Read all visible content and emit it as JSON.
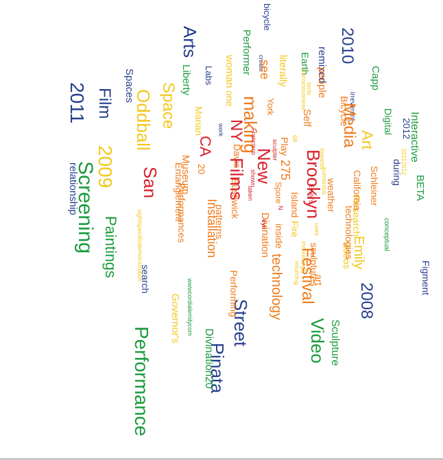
{
  "colors": {
    "blue": "#253e8c",
    "green": "#1a9a3c",
    "yellow": "#f2c81e",
    "orange": "#f07a1a",
    "red": "#d8202a"
  },
  "words": [
    {
      "t": "bicycle",
      "c": "blue"
    },
    {
      "t": "2010",
      "c": "blue"
    },
    {
      "t": "Arts",
      "c": "blue"
    },
    {
      "t": "2011",
      "c": "blue"
    },
    {
      "t": "Film",
      "c": "blue"
    },
    {
      "t": "Spaces",
      "c": "blue"
    },
    {
      "t": "relationship",
      "c": "blue"
    },
    {
      "t": "Labs",
      "c": "blue"
    },
    {
      "t": "remixed",
      "c": "blue"
    },
    {
      "t": "irreverent",
      "c": "blue"
    },
    {
      "t": "2012",
      "c": "blue"
    },
    {
      "t": "during",
      "c": "blue"
    },
    {
      "t": "Figment",
      "c": "blue"
    },
    {
      "t": "2008",
      "c": "blue"
    },
    {
      "t": "Street",
      "c": "blue"
    },
    {
      "t": "Pinata",
      "c": "blue"
    },
    {
      "t": "search",
      "c": "blue"
    },
    {
      "t": "work",
      "c": "blue"
    },
    {
      "t": "create",
      "c": "blue"
    },
    {
      "t": "Performer",
      "c": "green"
    },
    {
      "t": "Earth",
      "c": "green"
    },
    {
      "t": "Capp",
      "c": "green"
    },
    {
      "t": "Liberty",
      "c": "green"
    },
    {
      "t": "Digital",
      "c": "green"
    },
    {
      "t": "Interactive",
      "c": "green"
    },
    {
      "t": "BETA",
      "c": "green"
    },
    {
      "t": "Screening",
      "c": "green"
    },
    {
      "t": "Paintings",
      "c": "green"
    },
    {
      "t": "conceptual",
      "c": "green"
    },
    {
      "t": "Video",
      "c": "green"
    },
    {
      "t": "Sculpture",
      "c": "green"
    },
    {
      "t": "Divination20",
      "c": "green"
    },
    {
      "t": "Performance",
      "c": "green"
    },
    {
      "t": "wwwcordialemilycom",
      "c": "green"
    },
    {
      "t": "Space",
      "c": "yellow"
    },
    {
      "t": "Oddball",
      "c": "yellow"
    },
    {
      "t": "2009",
      "c": "yellow"
    },
    {
      "t": "woman",
      "c": "yellow"
    },
    {
      "t": "one",
      "c": "yellow"
    },
    {
      "t": "Marian",
      "c": "yellow"
    },
    {
      "t": "Art",
      "c": "yellow"
    },
    {
      "t": "Emily",
      "c": "yellow"
    },
    {
      "t": "tools",
      "c": "yellow"
    },
    {
      "t": "20112012",
      "c": "yellow"
    },
    {
      "t": "sightspecificdemonstration",
      "c": "yellow"
    },
    {
      "t": "Governor's",
      "c": "yellow"
    },
    {
      "t": "Research",
      "c": "yellow"
    },
    {
      "t": "literally",
      "c": "yellow"
    },
    {
      "t": "humorous",
      "c": "yellow"
    },
    {
      "t": "increasingly",
      "c": "yellow"
    },
    {
      "t": "returning",
      "c": "yellow"
    },
    {
      "t": "uses",
      "c": "yellow"
    },
    {
      "t": "Consciousness",
      "c": "yellow"
    },
    {
      "t": "Fire",
      "c": "yellow"
    },
    {
      "t": "videos",
      "c": "yellow"
    },
    {
      "t": "68",
      "c": "yellow"
    },
    {
      "t": "towards",
      "c": "yellow"
    },
    {
      "t": "see",
      "c": "orange"
    },
    {
      "t": "people",
      "c": "orange"
    },
    {
      "t": "Bicycle",
      "c": "orange"
    },
    {
      "t": "York",
      "c": "orange"
    },
    {
      "t": "Self",
      "c": "orange"
    },
    {
      "t": "Museum",
      "c": "orange"
    },
    {
      "t": "Davis",
      "c": "orange"
    },
    {
      "t": "Play",
      "c": "orange"
    },
    {
      "t": "275",
      "c": "orange"
    },
    {
      "t": "Schleiner",
      "c": "orange"
    },
    {
      "t": "California",
      "c": "orange"
    },
    {
      "t": "weather",
      "c": "orange"
    },
    {
      "t": "Performances",
      "c": "orange"
    },
    {
      "t": "Bushwick",
      "c": "orange"
    },
    {
      "t": "patterns",
      "c": "orange"
    },
    {
      "t": "Performing",
      "c": "orange"
    },
    {
      "t": "inside",
      "c": "orange"
    },
    {
      "t": "Island",
      "c": "orange"
    },
    {
      "t": "technologies",
      "c": "orange"
    },
    {
      "t": "sculptures",
      "c": "orange"
    },
    {
      "t": "art",
      "c": "orange"
    },
    {
      "t": "Festival",
      "c": "orange"
    },
    {
      "t": "technology",
      "c": "orange"
    },
    {
      "t": "Divination",
      "c": "orange"
    },
    {
      "t": "Installation",
      "c": "orange"
    },
    {
      "t": "Entanglement",
      "c": "orange"
    },
    {
      "t": "Spore",
      "c": "orange"
    },
    {
      "t": "20",
      "c": "orange"
    },
    {
      "t": "Media",
      "c": "orange"
    },
    {
      "t": "making",
      "c": "orange"
    },
    {
      "t": "NY",
      "c": "red"
    },
    {
      "t": "CA",
      "c": "red"
    },
    {
      "t": "New",
      "c": "red"
    },
    {
      "t": "Films",
      "c": "red"
    },
    {
      "t": "Brooklyn",
      "c": "red"
    },
    {
      "t": "San",
      "c": "red"
    },
    {
      "t": "Francisco",
      "c": "red"
    },
    {
      "t": "sculpter",
      "c": "red"
    },
    {
      "t": "taken",
      "c": "red"
    },
    {
      "t": "shown",
      "c": "red"
    },
    {
      "t": "N",
      "c": "red"
    },
    {
      "t": "eye",
      "c": "red"
    },
    {
      "t": "Emily's",
      "c": "red"
    },
    {
      "t": "upon",
      "c": "red"
    }
  ]
}
